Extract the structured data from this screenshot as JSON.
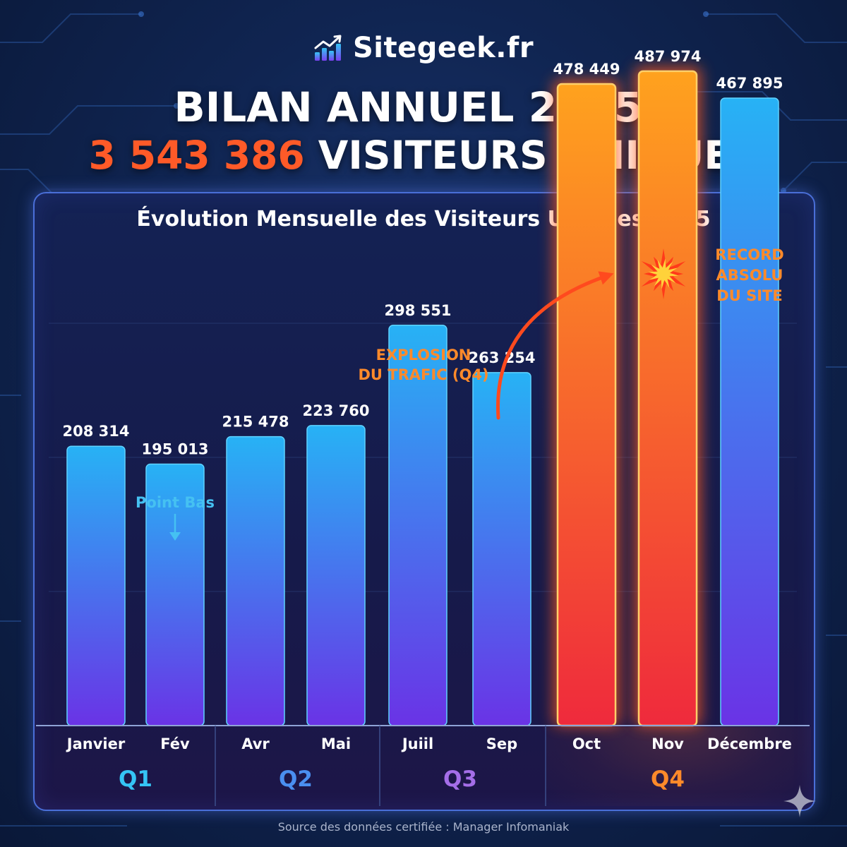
{
  "brand": {
    "name": "Sitegeek.fr",
    "logo_icon": "trending-bar-chart-icon"
  },
  "headline": {
    "line1": "BILAN ANNUEL 2025 :",
    "total": "3 543 386",
    "line2_rest": " VISITEURS UNIQUES"
  },
  "source": "Source des données certifiée : Manager Infomaniak",
  "colors": {
    "accent_orange": "#ff5a28",
    "bar_blue_top": "#27b2f5",
    "bar_purple_bottom": "#6a33e6",
    "bar_orange_top": "#ffa21e",
    "bar_red_bottom": "#ef2a3c",
    "q1": "#35c4f4",
    "q2": "#4a8ff0",
    "q3": "#a46ee8",
    "q4": "#ff8a2a",
    "annotation_orange": "#ff8a2a",
    "annotation_blue": "#45c1f2"
  },
  "chart_data": {
    "type": "bar",
    "title": "Évolution Mensuelle des Visiteurs Uniques 2025",
    "categories": [
      "Janvier",
      "Fév",
      "Avr",
      "Mai",
      "Juiil",
      "Sep",
      "Oct",
      "Nov",
      "Décembre"
    ],
    "values": [
      208314,
      195013,
      215478,
      223760,
      298551,
      263254,
      478449,
      487974,
      467895
    ],
    "value_labels": [
      "208 314",
      "195 013",
      "215 478",
      "223 760",
      "298 551",
      "263 254",
      "478 449",
      "487 974",
      "467 895"
    ],
    "highlighted": [
      false,
      false,
      false,
      false,
      false,
      false,
      true,
      true,
      false
    ],
    "quarters": [
      {
        "label": "Q1",
        "months": 2
      },
      {
        "label": "Q2",
        "months": 2
      },
      {
        "label": "Q3",
        "months": 2
      },
      {
        "label": "Q4",
        "months": 3
      }
    ],
    "ylim": [
      0,
      500000
    ],
    "grid": true,
    "annotations": {
      "low_point": "Point Bas",
      "explosion_line1": "EXPLOSION",
      "explosion_line2": "DU TRAFIC (Q4)",
      "record_line1": "RECORD",
      "record_line2": "ABSOLU",
      "record_line3": "DU SITE"
    }
  }
}
